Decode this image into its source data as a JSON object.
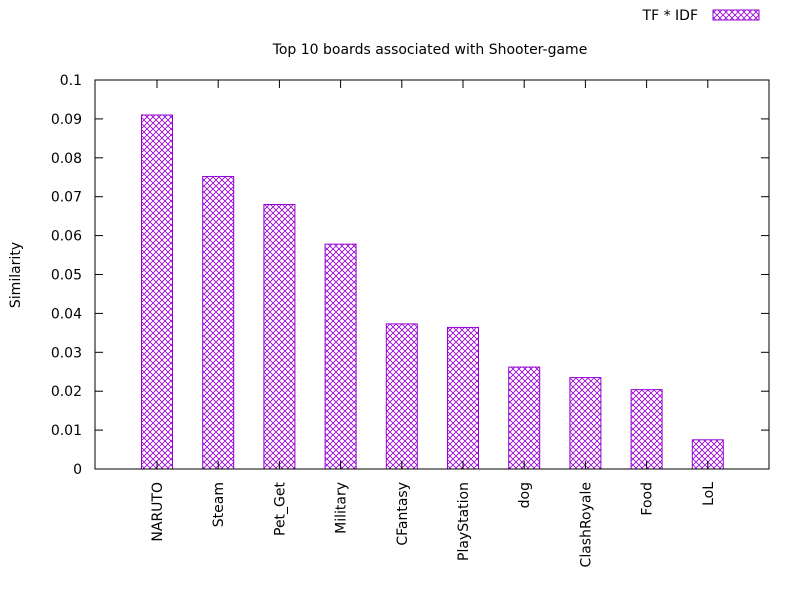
{
  "chart_data": {
    "type": "bar",
    "title": "Top 10 boards associated with Shooter-game",
    "xlabel": "",
    "ylabel": "Similarity",
    "ylim": [
      0,
      0.1
    ],
    "yticks": [
      "0",
      "0.01",
      "0.02",
      "0.03",
      "0.04",
      "0.05",
      "0.06",
      "0.07",
      "0.08",
      "0.09",
      "0.1"
    ],
    "categories": [
      "NARUTO",
      "Steam",
      "Pet_Get",
      "Military",
      "CFantasy",
      "PlayStation",
      "dog",
      "ClashRoyale",
      "Food",
      "LoL"
    ],
    "series": [
      {
        "name": "TF * IDF",
        "values": [
          0.091,
          0.0752,
          0.068,
          0.0578,
          0.0373,
          0.0364,
          0.0262,
          0.0235,
          0.0204,
          0.0075
        ]
      }
    ],
    "legend": "top-right",
    "grid": false,
    "colors": {
      "bar": "#9400d3",
      "axis": "#000000"
    }
  }
}
